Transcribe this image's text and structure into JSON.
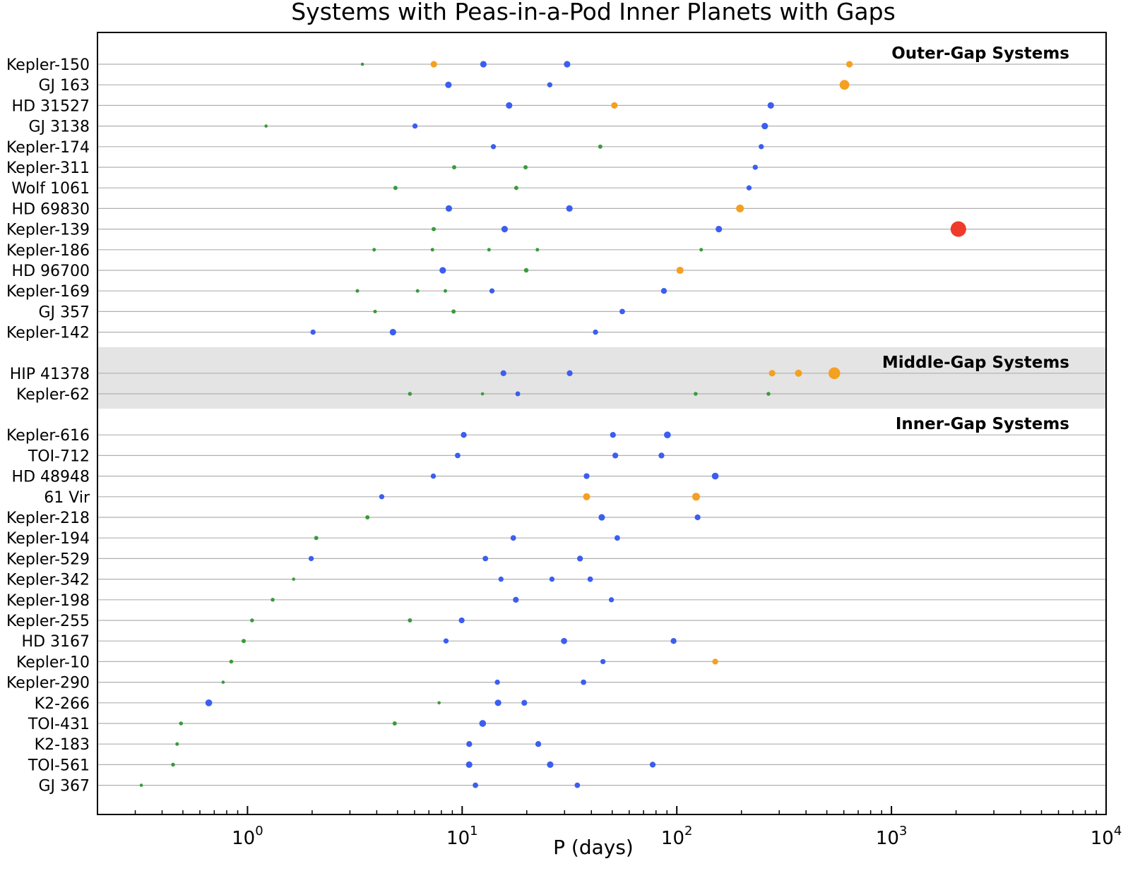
{
  "chart_data": {
    "type": "scatter",
    "title": "Systems with Peas-in-a-Pod Inner Planets with Gaps",
    "xlabel": "P (days)",
    "ylabel": "",
    "xscale": "log",
    "xlim": [
      0.2,
      10000
    ],
    "x_ticks": [
      {
        "base": "10",
        "exp": "0",
        "value": 1
      },
      {
        "base": "10",
        "exp": "1",
        "value": 10
      },
      {
        "base": "10",
        "exp": "2",
        "value": 100
      },
      {
        "base": "10",
        "exp": "3",
        "value": 1000
      },
      {
        "base": "10",
        "exp": "4",
        "value": 10000
      }
    ],
    "grid": "horizontal lines at each system",
    "colors": {
      "green": "#3a9a3a",
      "blue": "#3b5ef0",
      "orange": "#f4a020",
      "red": "#f03a2a",
      "band": "#e4e4e4",
      "gridline": "#b0b0b0"
    },
    "sections": [
      {
        "label": "Outer-Gap Systems",
        "shaded": false,
        "systems": [
          {
            "name": "Kepler-150",
            "planets": [
              [
                3.43,
                "green",
                1
              ],
              [
                7.38,
                "orange",
                2
              ],
              [
                12.56,
                "blue",
                2
              ],
              [
                30.83,
                "blue",
                2
              ],
              [
                637,
                "orange",
                2
              ]
            ]
          },
          {
            "name": "GJ 163",
            "planets": [
              [
                8.63,
                "blue",
                2
              ],
              [
                25.6,
                "blue",
                1.6
              ],
              [
                604,
                "orange",
                3
              ]
            ]
          },
          {
            "name": "HD 31527",
            "planets": [
              [
                16.55,
                "blue",
                2
              ],
              [
                51.2,
                "orange",
                2
              ],
              [
                274,
                "blue",
                2
              ]
            ]
          },
          {
            "name": "GJ 3138",
            "planets": [
              [
                1.22,
                "green",
                1
              ],
              [
                6.03,
                "blue",
                1.6
              ],
              [
                257,
                "blue",
                2
              ]
            ]
          },
          {
            "name": "Kepler-174",
            "planets": [
              [
                13.98,
                "blue",
                1.6
              ],
              [
                44,
                "green",
                1.3
              ],
              [
                247.4,
                "blue",
                1.6
              ]
            ]
          },
          {
            "name": "Kepler-311",
            "planets": [
              [
                9.18,
                "green",
                1.3
              ],
              [
                19.74,
                "green",
                1.3
              ],
              [
                232,
                "blue",
                1.6
              ]
            ]
          },
          {
            "name": "Wolf 1061",
            "planets": [
              [
                4.89,
                "green",
                1.3
              ],
              [
                17.87,
                "green",
                1.3
              ],
              [
                217,
                "blue",
                1.6
              ]
            ]
          },
          {
            "name": "HD 69830",
            "planets": [
              [
                8.67,
                "blue",
                2
              ],
              [
                31.6,
                "blue",
                2
              ],
              [
                197,
                "orange",
                2.4
              ]
            ]
          },
          {
            "name": "Kepler-139",
            "planets": [
              [
                7.37,
                "green",
                1.3
              ],
              [
                15.77,
                "blue",
                2
              ],
              [
                157,
                "blue",
                2
              ],
              [
                2050,
                "red",
                4.8
              ]
            ]
          },
          {
            "name": "Kepler-186",
            "planets": [
              [
                3.89,
                "green",
                1.1
              ],
              [
                7.27,
                "green",
                1.1
              ],
              [
                13.34,
                "green",
                1.1
              ],
              [
                22.41,
                "green",
                1.1
              ],
              [
                129.9,
                "green",
                1.1
              ]
            ]
          },
          {
            "name": "HD 96700",
            "planets": [
              [
                8.12,
                "blue",
                2
              ],
              [
                19.88,
                "green",
                1.4
              ],
              [
                103.5,
                "orange",
                2.2
              ]
            ]
          },
          {
            "name": "Kepler-169",
            "planets": [
              [
                3.25,
                "green",
                1.1
              ],
              [
                6.2,
                "green",
                1.1
              ],
              [
                8.35,
                "green",
                1.1
              ],
              [
                13.77,
                "blue",
                1.6
              ],
              [
                87.09,
                "blue",
                1.8
              ]
            ]
          },
          {
            "name": "GJ 357",
            "planets": [
              [
                3.93,
                "green",
                1.1
              ],
              [
                9.12,
                "green",
                1.3
              ],
              [
                55.7,
                "blue",
                1.7
              ]
            ]
          },
          {
            "name": "Kepler-142",
            "planets": [
              [
                2.02,
                "blue",
                1.6
              ],
              [
                4.76,
                "blue",
                2
              ],
              [
                41.8,
                "blue",
                1.6
              ]
            ]
          }
        ]
      },
      {
        "label": "Middle-Gap Systems",
        "shaded": true,
        "systems": [
          {
            "name": "HIP 41378",
            "planets": [
              [
                15.57,
                "blue",
                1.8
              ],
              [
                31.7,
                "blue",
                1.8
              ],
              [
                278,
                "orange",
                2
              ],
              [
                369,
                "orange",
                2.2
              ],
              [
                542,
                "orange",
                3.6
              ]
            ]
          },
          {
            "name": "Kepler-62",
            "planets": [
              [
                5.71,
                "green",
                1.2
              ],
              [
                12.44,
                "green",
                1
              ],
              [
                18.16,
                "blue",
                1.5
              ],
              [
                122.4,
                "green",
                1.2
              ],
              [
                267.3,
                "green",
                1.2
              ]
            ]
          }
        ]
      },
      {
        "label": "Inner-Gap Systems",
        "shaded": false,
        "systems": [
          {
            "name": "Kepler-616",
            "planets": [
              [
                10.17,
                "blue",
                1.8
              ],
              [
                50.4,
                "blue",
                1.8
              ],
              [
                90.4,
                "blue",
                2.1
              ]
            ]
          },
          {
            "name": "TOI-712",
            "planets": [
              [
                9.53,
                "blue",
                1.7
              ],
              [
                51.7,
                "blue",
                1.8
              ],
              [
                84.8,
                "blue",
                1.8
              ]
            ]
          },
          {
            "name": "HD 48948",
            "planets": [
              [
                7.34,
                "blue",
                1.6
              ],
              [
                38,
                "blue",
                1.8
              ],
              [
                151,
                "blue",
                2.1
              ]
            ]
          },
          {
            "name": "61 Vir",
            "planets": [
              [
                4.22,
                "blue",
                1.6
              ],
              [
                38,
                "orange",
                2.2
              ],
              [
                123,
                "orange",
                2.4
              ]
            ]
          },
          {
            "name": "Kepler-218",
            "planets": [
              [
                3.62,
                "green",
                1.3
              ],
              [
                44.7,
                "blue",
                2
              ],
              [
                125,
                "blue",
                1.8
              ]
            ]
          },
          {
            "name": "Kepler-194",
            "planets": [
              [
                2.09,
                "green",
                1.3
              ],
              [
                17.31,
                "blue",
                1.7
              ],
              [
                52.8,
                "blue",
                1.7
              ]
            ]
          },
          {
            "name": "Kepler-529",
            "planets": [
              [
                1.98,
                "blue",
                1.6
              ],
              [
                12.83,
                "blue",
                1.7
              ],
              [
                35.4,
                "blue",
                1.8
              ]
            ]
          },
          {
            "name": "Kepler-342",
            "planets": [
              [
                1.64,
                "green",
                1
              ],
              [
                15.17,
                "blue",
                1.6
              ],
              [
                26.2,
                "blue",
                1.6
              ],
              [
                39.5,
                "blue",
                1.7
              ]
            ]
          },
          {
            "name": "Kepler-198",
            "planets": [
              [
                1.31,
                "green",
                1.2
              ],
              [
                17.79,
                "blue",
                1.8
              ],
              [
                49.57,
                "blue",
                1.6
              ]
            ]
          },
          {
            "name": "Kepler-255",
            "planets": [
              [
                1.05,
                "green",
                1.2
              ],
              [
                5.71,
                "green",
                1.3
              ],
              [
                9.95,
                "blue",
                1.8
              ]
            ]
          },
          {
            "name": "HD 3167",
            "planets": [
              [
                0.96,
                "green",
                1.3
              ],
              [
                8.41,
                "blue",
                1.6
              ],
              [
                29.84,
                "blue",
                1.9
              ],
              [
                96.6,
                "blue",
                1.8
              ]
            ]
          },
          {
            "name": "Kepler-10",
            "planets": [
              [
                0.84,
                "green",
                1.2
              ],
              [
                45.29,
                "blue",
                1.6
              ],
              [
                151,
                "orange",
                1.8
              ]
            ]
          },
          {
            "name": "Kepler-290",
            "planets": [
              [
                0.77,
                "green",
                1
              ],
              [
                14.59,
                "blue",
                1.6
              ],
              [
                36.77,
                "blue",
                1.7
              ]
            ]
          },
          {
            "name": "K2-266",
            "planets": [
              [
                0.66,
                "blue",
                2.1
              ],
              [
                7.81,
                "green",
                1
              ],
              [
                14.7,
                "blue",
                2
              ],
              [
                19.48,
                "blue",
                1.8
              ]
            ]
          },
          {
            "name": "TOI-431",
            "planets": [
              [
                0.49,
                "green",
                1.2
              ],
              [
                4.85,
                "green",
                1.3
              ],
              [
                12.46,
                "blue",
                2.1
              ]
            ]
          },
          {
            "name": "K2-183",
            "planets": [
              [
                0.47,
                "green",
                1.1
              ],
              [
                10.79,
                "blue",
                1.8
              ],
              [
                22.63,
                "blue",
                1.8
              ]
            ]
          },
          {
            "name": "TOI-561",
            "planets": [
              [
                0.45,
                "green",
                1.2
              ],
              [
                10.78,
                "blue",
                2
              ],
              [
                25.71,
                "blue",
                2
              ],
              [
                77.2,
                "blue",
                1.8
              ]
            ]
          },
          {
            "name": "GJ 367",
            "planets": [
              [
                0.32,
                "green",
                1
              ],
              [
                11.53,
                "blue",
                1.7
              ],
              [
                34.4,
                "blue",
                1.7
              ]
            ]
          }
        ]
      }
    ]
  }
}
